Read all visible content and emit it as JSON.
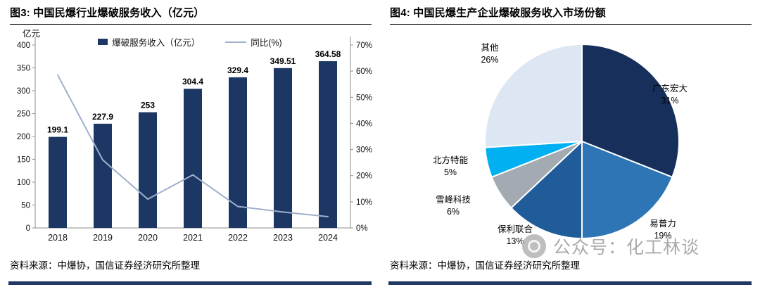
{
  "watermark": {
    "text": "公众号：化工林谈",
    "icon": "circle-logo-icon"
  },
  "colors": {
    "bar": "#1C3763",
    "line": "#9FB0CC",
    "bottom_rule": "#1F3864",
    "axis": "#8c8c8c"
  },
  "chart_data": [
    {
      "type": "bar",
      "title": "图3: 中国民爆行业爆破服务收入（亿元）",
      "categories": [
        "2018",
        "2019",
        "2020",
        "2021",
        "2022",
        "2023",
        "2024"
      ],
      "series": [
        {
          "name": "爆破服务收入（亿元）",
          "type": "bar",
          "axis": "left",
          "values": [
            199.1,
            227.9,
            253,
            304.4,
            329.4,
            349.51,
            364.58
          ],
          "color": "#1C3763"
        },
        {
          "name": "同比(%)",
          "type": "line",
          "axis": "right",
          "values": [
            58.5,
            26,
            11,
            20.3,
            8.2,
            6.1,
            4.3
          ],
          "color": "#9FB0CC"
        }
      ],
      "value_labels": [
        "199.1",
        "227.9",
        "253",
        "304.4",
        "329.4",
        "349.51",
        "364.58"
      ],
      "left_axis": {
        "label": "亿元",
        "min": 0,
        "max": 400,
        "step": 50,
        "ticks": [
          "0",
          "50",
          "100",
          "150",
          "200",
          "250",
          "300",
          "350",
          "400"
        ]
      },
      "right_axis": {
        "min": 0,
        "max": 70,
        "step": 10,
        "suffix": "%",
        "ticks": [
          "0%",
          "10%",
          "20%",
          "30%",
          "40%",
          "50%",
          "60%",
          "70%"
        ]
      },
      "grid": false,
      "legend_position": "top",
      "source": "资料来源：中爆协，国信证券经济研究所整理"
    },
    {
      "type": "pie",
      "title": "图4: 中国民爆生产企业爆破服务收入市场份额",
      "slices": [
        {
          "name": "广东宏大",
          "pct": "31%",
          "value": 31,
          "color": "#16305B"
        },
        {
          "name": "易普力",
          "pct": "19%",
          "value": 19,
          "color": "#2E75B6"
        },
        {
          "name": "保利联合",
          "pct": "13%",
          "value": 13,
          "color": "#1F5C99"
        },
        {
          "name": "雪峰科技",
          "pct": "6%",
          "value": 6,
          "color": "#A3AAB1"
        },
        {
          "name": "北方特能",
          "pct": "5%",
          "value": 5,
          "color": "#00B0F0"
        },
        {
          "name": "其他",
          "pct": "26%",
          "value": 26,
          "color": "#DCE7F3"
        }
      ],
      "start_angle": "top",
      "direction": "clockwise",
      "legend_position": "none",
      "source": "资料来源：中爆协，国信证券经济研究所整理"
    }
  ]
}
